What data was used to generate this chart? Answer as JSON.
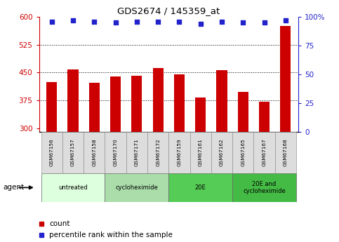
{
  "title": "GDS2674 / 145359_at",
  "samples": [
    "GSM67156",
    "GSM67157",
    "GSM67158",
    "GSM67170",
    "GSM67171",
    "GSM67172",
    "GSM67159",
    "GSM67161",
    "GSM67162",
    "GSM67165",
    "GSM67167",
    "GSM67168"
  ],
  "counts": [
    425,
    458,
    422,
    440,
    441,
    463,
    446,
    383,
    456,
    398,
    372,
    575
  ],
  "percentile_ranks": [
    96,
    97,
    96,
    95,
    96,
    96,
    96,
    94,
    96,
    95,
    95,
    97
  ],
  "ylim_left": [
    290,
    600
  ],
  "ylim_right": [
    0,
    100
  ],
  "yticks_left": [
    300,
    375,
    450,
    525,
    600
  ],
  "yticks_right": [
    0,
    25,
    50,
    75,
    100
  ],
  "bar_color": "#CC0000",
  "dot_color": "#2222CC",
  "bar_width": 0.5,
  "groups": [
    {
      "label": "untreated",
      "start": 0,
      "end": 3,
      "color": "#DDFFDD"
    },
    {
      "label": "cycloheximide",
      "start": 3,
      "end": 6,
      "color": "#AADDAA"
    },
    {
      "label": "20E",
      "start": 6,
      "end": 9,
      "color": "#55CC55"
    },
    {
      "label": "20E and\ncycloheximide",
      "start": 9,
      "end": 12,
      "color": "#44BB44"
    }
  ],
  "tick_label_bg": "#DDDDDD",
  "legend_count_color": "#CC0000",
  "legend_dot_color": "#2222CC",
  "hgrid_ticks": [
    375,
    450,
    525
  ]
}
